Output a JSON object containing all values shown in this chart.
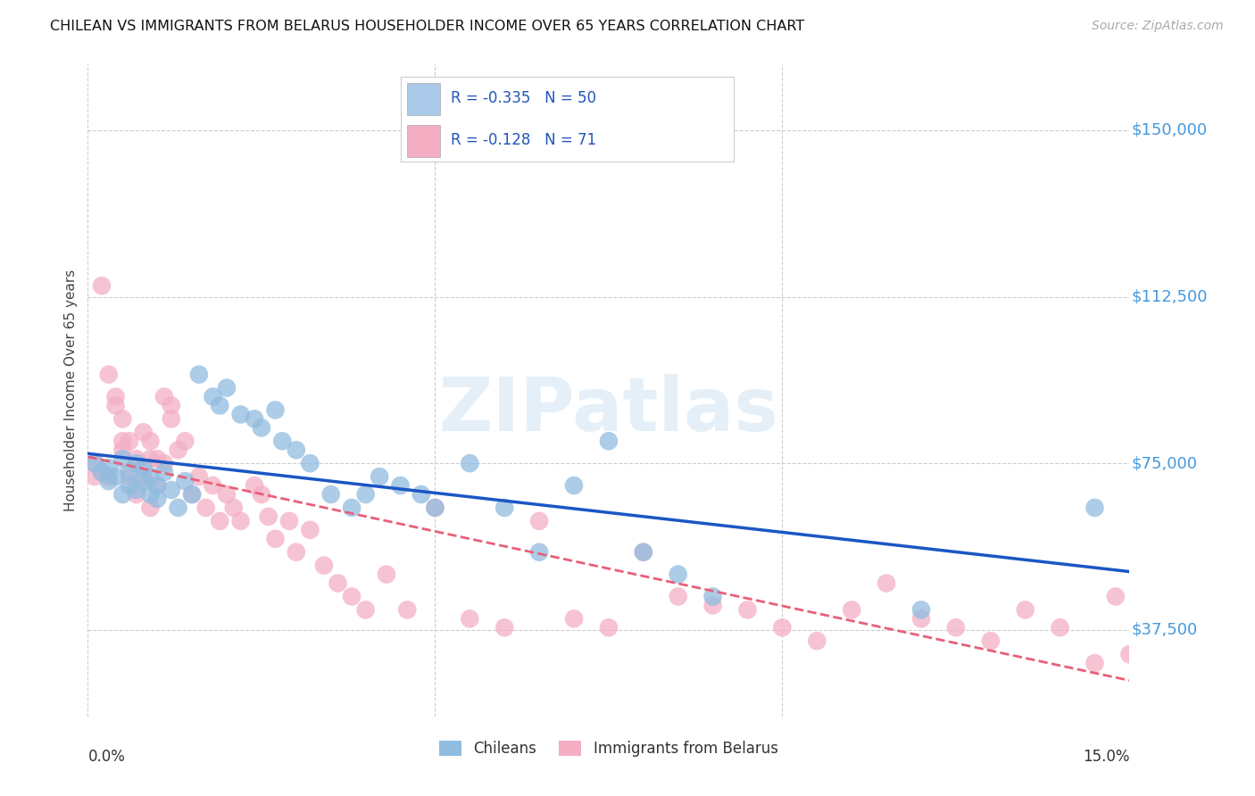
{
  "title": "CHILEAN VS IMMIGRANTS FROM BELARUS HOUSEHOLDER INCOME OVER 65 YEARS CORRELATION CHART",
  "source": "Source: ZipAtlas.com",
  "ylabel": "Householder Income Over 65 years",
  "xlim": [
    0.0,
    0.15
  ],
  "ylim": [
    18000,
    165000
  ],
  "yticks": [
    37500,
    75000,
    112500,
    150000
  ],
  "ytick_labels": [
    "$37,500",
    "$75,000",
    "$112,500",
    "$150,000"
  ],
  "watermark": "ZIPatlas",
  "legend_r_entries": [
    {
      "label_r": "R = -0.335",
      "label_n": "N = 50",
      "color": "#aac8e8"
    },
    {
      "label_r": "R = -0.128",
      "label_n": "N = 71",
      "color": "#f4afc4"
    }
  ],
  "bottom_legend": [
    "Chileans",
    "Immigrants from Belarus"
  ],
  "chileans_color": "#90bce0",
  "belarus_color": "#f4afc4",
  "chileans_line_color": "#1a56c4",
  "belarus_line_color": "#e8607a",
  "background_color": "#ffffff",
  "grid_color": "#cccccc",
  "title_color": "#111111",
  "right_label_color": "#4499dd",
  "chileans_x": [
    0.001,
    0.002,
    0.003,
    0.003,
    0.004,
    0.005,
    0.005,
    0.006,
    0.006,
    0.007,
    0.007,
    0.008,
    0.008,
    0.009,
    0.009,
    0.01,
    0.01,
    0.011,
    0.012,
    0.013,
    0.014,
    0.015,
    0.016,
    0.018,
    0.019,
    0.02,
    0.022,
    0.024,
    0.025,
    0.027,
    0.028,
    0.03,
    0.032,
    0.035,
    0.038,
    0.04,
    0.042,
    0.045,
    0.048,
    0.05,
    0.055,
    0.06,
    0.065,
    0.07,
    0.075,
    0.08,
    0.085,
    0.09,
    0.12,
    0.145
  ],
  "chileans_y": [
    75000,
    73000,
    71000,
    74000,
    72000,
    76000,
    68000,
    73000,
    70000,
    75000,
    69000,
    71000,
    74000,
    68000,
    72000,
    70000,
    67000,
    73000,
    69000,
    65000,
    71000,
    68000,
    95000,
    90000,
    88000,
    92000,
    86000,
    85000,
    83000,
    87000,
    80000,
    78000,
    75000,
    68000,
    65000,
    68000,
    72000,
    70000,
    68000,
    65000,
    75000,
    65000,
    55000,
    70000,
    80000,
    55000,
    50000,
    45000,
    42000,
    65000
  ],
  "belarus_x": [
    0.001,
    0.001,
    0.002,
    0.002,
    0.003,
    0.003,
    0.004,
    0.004,
    0.005,
    0.005,
    0.005,
    0.006,
    0.006,
    0.007,
    0.007,
    0.008,
    0.008,
    0.009,
    0.009,
    0.009,
    0.01,
    0.01,
    0.011,
    0.011,
    0.012,
    0.012,
    0.013,
    0.014,
    0.015,
    0.016,
    0.017,
    0.018,
    0.019,
    0.02,
    0.021,
    0.022,
    0.024,
    0.025,
    0.026,
    0.027,
    0.029,
    0.03,
    0.032,
    0.034,
    0.036,
    0.038,
    0.04,
    0.043,
    0.046,
    0.05,
    0.055,
    0.06,
    0.065,
    0.07,
    0.075,
    0.08,
    0.085,
    0.09,
    0.095,
    0.1,
    0.105,
    0.11,
    0.115,
    0.12,
    0.125,
    0.13,
    0.135,
    0.14,
    0.145,
    0.148,
    0.15
  ],
  "belarus_y": [
    75000,
    72000,
    115000,
    73000,
    95000,
    72000,
    90000,
    88000,
    85000,
    80000,
    78000,
    80000,
    72000,
    76000,
    68000,
    82000,
    72000,
    80000,
    76000,
    65000,
    76000,
    70000,
    90000,
    75000,
    88000,
    85000,
    78000,
    80000,
    68000,
    72000,
    65000,
    70000,
    62000,
    68000,
    65000,
    62000,
    70000,
    68000,
    63000,
    58000,
    62000,
    55000,
    60000,
    52000,
    48000,
    45000,
    42000,
    50000,
    42000,
    65000,
    40000,
    38000,
    62000,
    40000,
    38000,
    55000,
    45000,
    43000,
    42000,
    38000,
    35000,
    42000,
    48000,
    40000,
    38000,
    35000,
    42000,
    38000,
    30000,
    45000,
    32000
  ]
}
